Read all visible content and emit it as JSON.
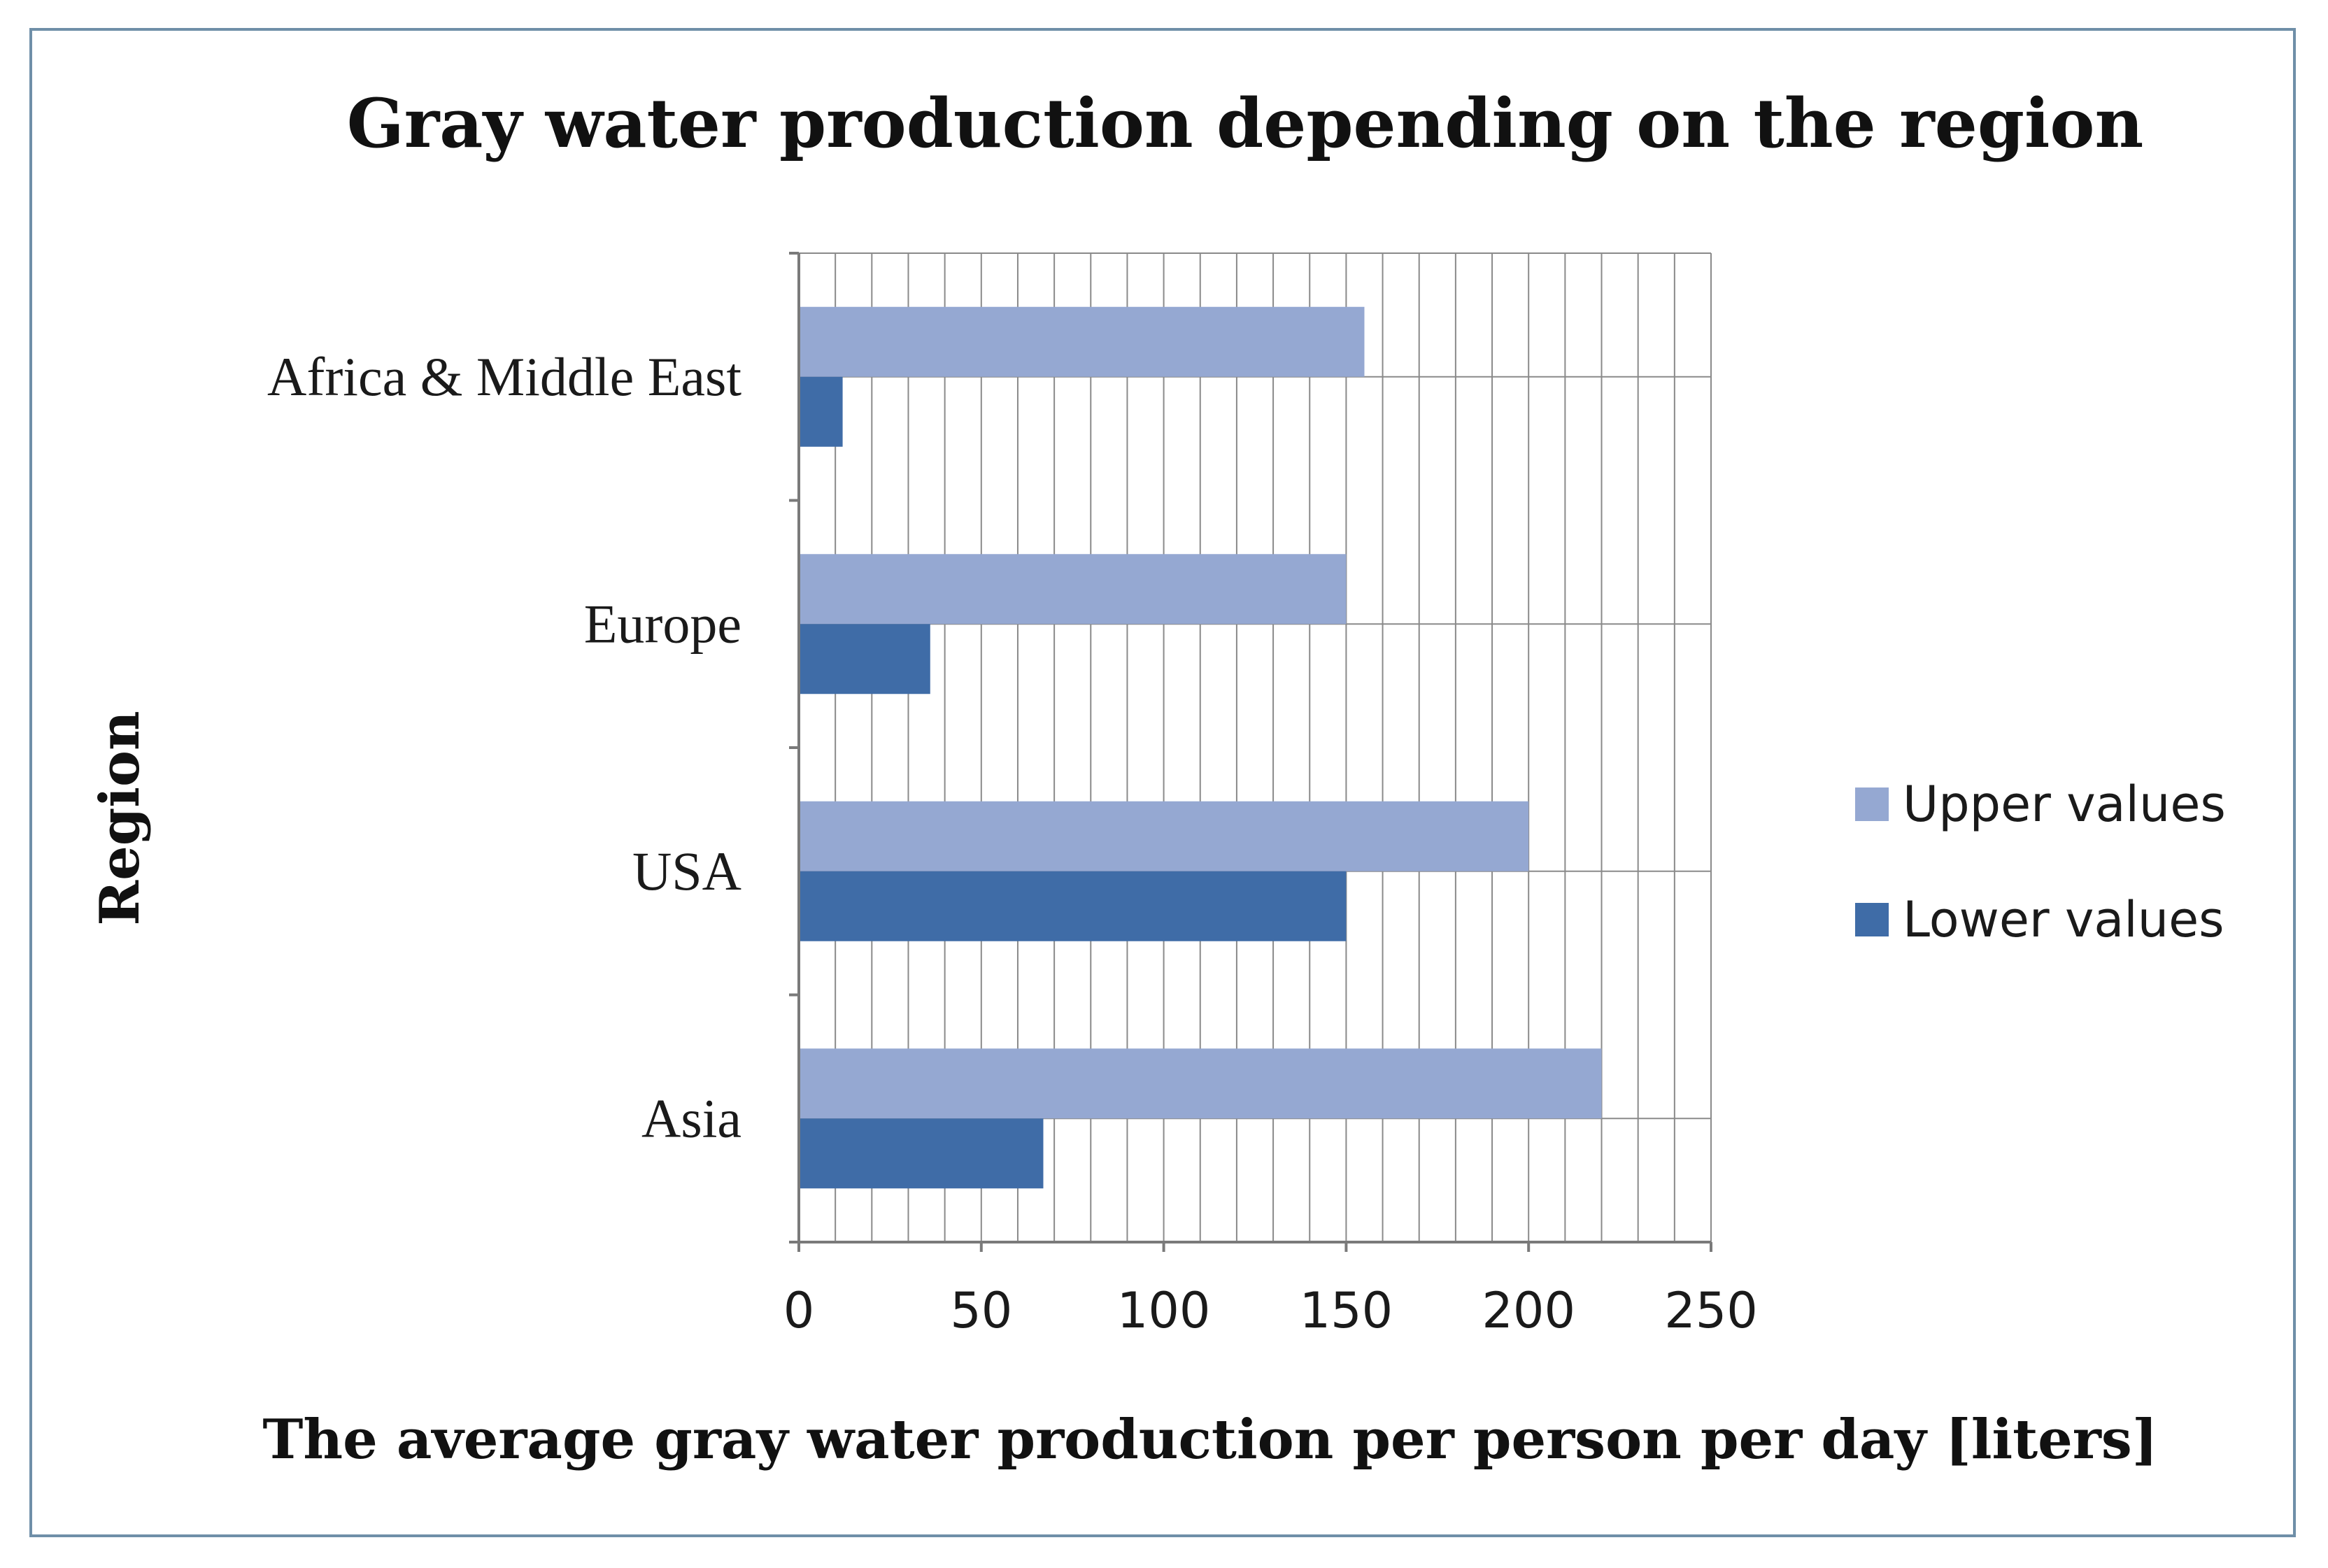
{
  "chart_data": {
    "type": "bar",
    "orientation": "horizontal",
    "title": "Gray water production depending on the region",
    "xlabel": "The average gray water production  per person per day [liters]",
    "ylabel": "Region",
    "categories": [
      "Africa & Middle East",
      "Europe",
      "USA",
      "Asia"
    ],
    "series": [
      {
        "name": "Upper values",
        "color": "#95a8d2",
        "values": [
          155,
          150,
          200,
          220
        ]
      },
      {
        "name": "Lower values",
        "color": "#3f6ca7",
        "values": [
          12,
          36,
          150,
          67
        ]
      }
    ],
    "xlim": [
      0,
      250
    ],
    "xticks": [
      0,
      50,
      100,
      150,
      200,
      250
    ],
    "grid": true,
    "legend": "right"
  }
}
